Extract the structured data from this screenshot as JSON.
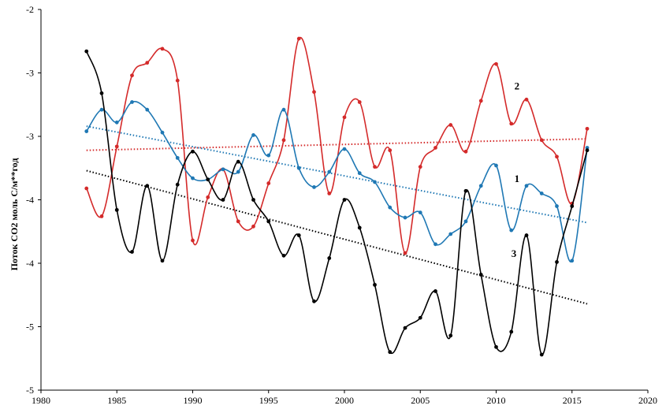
{
  "chart_data": {
    "type": "line",
    "ylabel": "Поток CO2  моль  C/м**год",
    "xlim": [
      1980,
      2020
    ],
    "ylim": [
      -5,
      -2
    ],
    "x_ticks": [
      1980,
      1985,
      1990,
      1995,
      2000,
      2005,
      2010,
      2015,
      2020
    ],
    "y_ticks": [
      -2,
      -2.5,
      -3,
      -3.5,
      -4,
      -4.5,
      -5
    ],
    "y_tick_labels": [
      "-2",
      "-3",
      "-3",
      "-4",
      "-4",
      "-5",
      "-5"
    ],
    "grid": false,
    "series": [
      {
        "name": "2",
        "color": "#d42a2a",
        "x": [
          1983,
          1984,
          1985,
          1986,
          1987,
          1988,
          1989,
          1990,
          1991,
          1992,
          1993,
          1994,
          1995,
          1996,
          1997,
          1998,
          1999,
          2000,
          2001,
          2002,
          2003,
          2004,
          2005,
          2006,
          2007,
          2008,
          2009,
          2010,
          2011,
          2012,
          2013,
          2014,
          2015,
          2016
        ],
        "values": [
          -3.41,
          -3.63,
          -3.08,
          -2.52,
          -2.42,
          -2.31,
          -2.56,
          -3.82,
          -3.48,
          -3.26,
          -3.67,
          -3.71,
          -3.37,
          -3.03,
          -2.23,
          -2.65,
          -3.45,
          -2.85,
          -2.73,
          -3.24,
          -3.11,
          -3.92,
          -3.24,
          -3.09,
          -2.91,
          -3.12,
          -2.72,
          -2.43,
          -2.9,
          -2.71,
          -3.03,
          -3.16,
          -3.53,
          -2.94
        ],
        "trend": [
          -3.11,
          -3.02
        ]
      },
      {
        "name": "1",
        "color": "#1f78b4",
        "x": [
          1983,
          1984,
          1985,
          1986,
          1987,
          1988,
          1989,
          1990,
          1991,
          1992,
          1993,
          1994,
          1995,
          1996,
          1997,
          1998,
          1999,
          2000,
          2001,
          2002,
          2003,
          2004,
          2005,
          2006,
          2007,
          2008,
          2009,
          2010,
          2011,
          2012,
          2013,
          2014,
          2015,
          2016
        ],
        "values": [
          -2.96,
          -2.79,
          -2.89,
          -2.73,
          -2.79,
          -2.97,
          -3.17,
          -3.33,
          -3.34,
          -3.26,
          -3.28,
          -2.99,
          -3.15,
          -2.79,
          -3.25,
          -3.4,
          -3.28,
          -3.1,
          -3.29,
          -3.36,
          -3.56,
          -3.64,
          -3.6,
          -3.85,
          -3.77,
          -3.67,
          -3.39,
          -3.23,
          -3.74,
          -3.39,
          -3.45,
          -3.55,
          -3.98,
          -3.09
        ],
        "trend": [
          -2.92,
          -3.68
        ]
      },
      {
        "name": "3",
        "color": "#000000",
        "x": [
          1983,
          1984,
          1985,
          1986,
          1987,
          1988,
          1989,
          1990,
          1991,
          1992,
          1993,
          1994,
          1995,
          1996,
          1997,
          1998,
          1999,
          2000,
          2001,
          2002,
          2003,
          2004,
          2005,
          2006,
          2007,
          2008,
          2009,
          2010,
          2011,
          2012,
          2013,
          2014,
          2015,
          2016
        ],
        "values": [
          -2.33,
          -2.66,
          -3.58,
          -3.91,
          -3.39,
          -3.98,
          -3.38,
          -3.12,
          -3.34,
          -3.5,
          -3.2,
          -3.5,
          -3.67,
          -3.94,
          -3.78,
          -4.3,
          -3.96,
          -3.5,
          -3.72,
          -4.17,
          -4.7,
          -4.51,
          -4.43,
          -4.22,
          -4.57,
          -3.43,
          -4.09,
          -4.66,
          -4.54,
          -3.78,
          -4.72,
          -3.99,
          -3.55,
          -3.11
        ],
        "trend": [
          -3.27,
          -4.32
        ]
      }
    ]
  }
}
